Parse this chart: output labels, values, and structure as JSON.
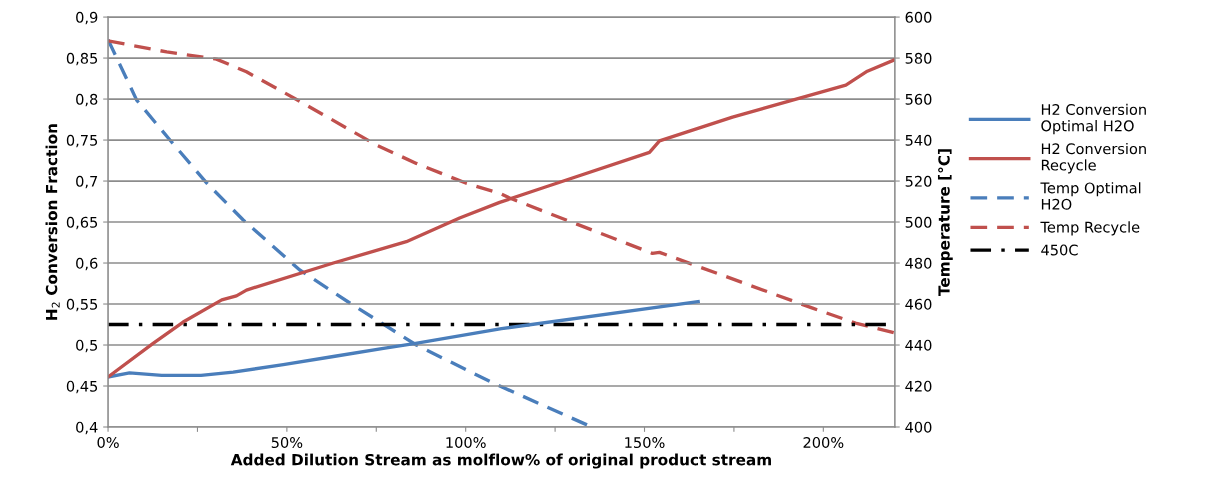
{
  "chart_data": {
    "type": "line",
    "xlabel": "Added Dilution Stream as molflow% of original product stream",
    "ylabel": "H$_{2}$ Conversion Fraction",
    "y2label": "Temperature [°C]",
    "xlim": [
      0,
      220
    ],
    "xticks": [
      {
        "value": 0,
        "label": "0%"
      },
      {
        "value": 25,
        "label": null
      },
      {
        "value": 50,
        "label": "50%"
      },
      {
        "value": 75,
        "label": null
      },
      {
        "value": 100,
        "label": "100%"
      },
      {
        "value": 125,
        "label": null
      },
      {
        "value": 150,
        "label": "150%"
      },
      {
        "value": 175,
        "label": null
      },
      {
        "value": 200,
        "label": "200%"
      }
    ],
    "ylim": [
      0.4,
      0.9
    ],
    "yticks": [
      {
        "value": 0.4,
        "label": "0,4"
      },
      {
        "value": 0.45,
        "label": "0,45"
      },
      {
        "value": 0.5,
        "label": "0,5"
      },
      {
        "value": 0.55,
        "label": "0,55"
      },
      {
        "value": 0.6,
        "label": "0,6"
      },
      {
        "value": 0.65,
        "label": "0,65"
      },
      {
        "value": 0.7,
        "label": "0,7"
      },
      {
        "value": 0.75,
        "label": "0,75"
      },
      {
        "value": 0.8,
        "label": "0,8"
      },
      {
        "value": 0.85,
        "label": "0,85"
      },
      {
        "value": 0.9,
        "label": "0,9"
      }
    ],
    "y2lim": [
      400,
      600
    ],
    "y2ticks": [
      400,
      420,
      440,
      460,
      480,
      500,
      520,
      540,
      560,
      580,
      600
    ],
    "grid": "y",
    "legend": "right",
    "series": [
      {
        "name": "H2 Conversion Optimal H2O",
        "color": "#4a7ebb",
        "line_style": "solid",
        "x": [
          0,
          6,
          15,
          26,
          35,
          49,
          63,
          77,
          86,
          110,
          165
        ],
        "values": [
          0.461,
          0.466,
          0.463,
          0.463,
          0.467,
          0.476,
          0.486,
          0.496,
          0.502,
          0.52,
          0.553
        ]
      },
      {
        "name": "H2 Conversion Recycle",
        "color": "#c0504d",
        "line_style": "solid",
        "x": [
          0,
          12.6,
          21,
          31.8,
          35.9,
          38.7,
          63,
          83.4,
          98.3,
          109.5,
          122.5,
          151.4,
          154.2,
          174.6,
          206.3,
          212.3,
          220
        ],
        "values": [
          0.461,
          0.502,
          0.528,
          0.555,
          0.56,
          0.567,
          0.6,
          0.626,
          0.655,
          0.674,
          0.693,
          0.735,
          0.749,
          0.778,
          0.817,
          0.834,
          0.848
        ]
      },
      {
        "name": "Temp Optimal H2O",
        "color": "#4a7ebb",
        "line_style": "dashed",
        "axis": "y2",
        "x": [
          0,
          8,
          17.3,
          27.6,
          37.8,
          53.6,
          67.6,
          86.2,
          107.6,
          134.6
        ],
        "values": [
          589,
          559.5,
          540,
          519,
          501,
          476.6,
          460.5,
          440,
          421.5,
          400.5
        ]
      },
      {
        "name": "Temp Recycle",
        "color": "#c0504d",
        "line_style": "dashed",
        "axis": "y2",
        "x": [
          0,
          16.4,
          30.3,
          38.7,
          52.7,
          75,
          86.2,
          100.2,
          109.5,
          112.3,
          152.2,
          154.2,
          197,
          209,
          220
        ],
        "values": [
          588.4,
          583,
          579.5,
          573.3,
          559.8,
          537.6,
          528.6,
          518.9,
          514,
          511.7,
          484.7,
          485.2,
          458,
          450.7,
          445.9
        ]
      },
      {
        "name": "450C",
        "color": "#000000",
        "line_style": "dashdot",
        "axis": "y2",
        "x": [
          0,
          217.5
        ],
        "values": [
          450,
          450
        ]
      }
    ]
  }
}
